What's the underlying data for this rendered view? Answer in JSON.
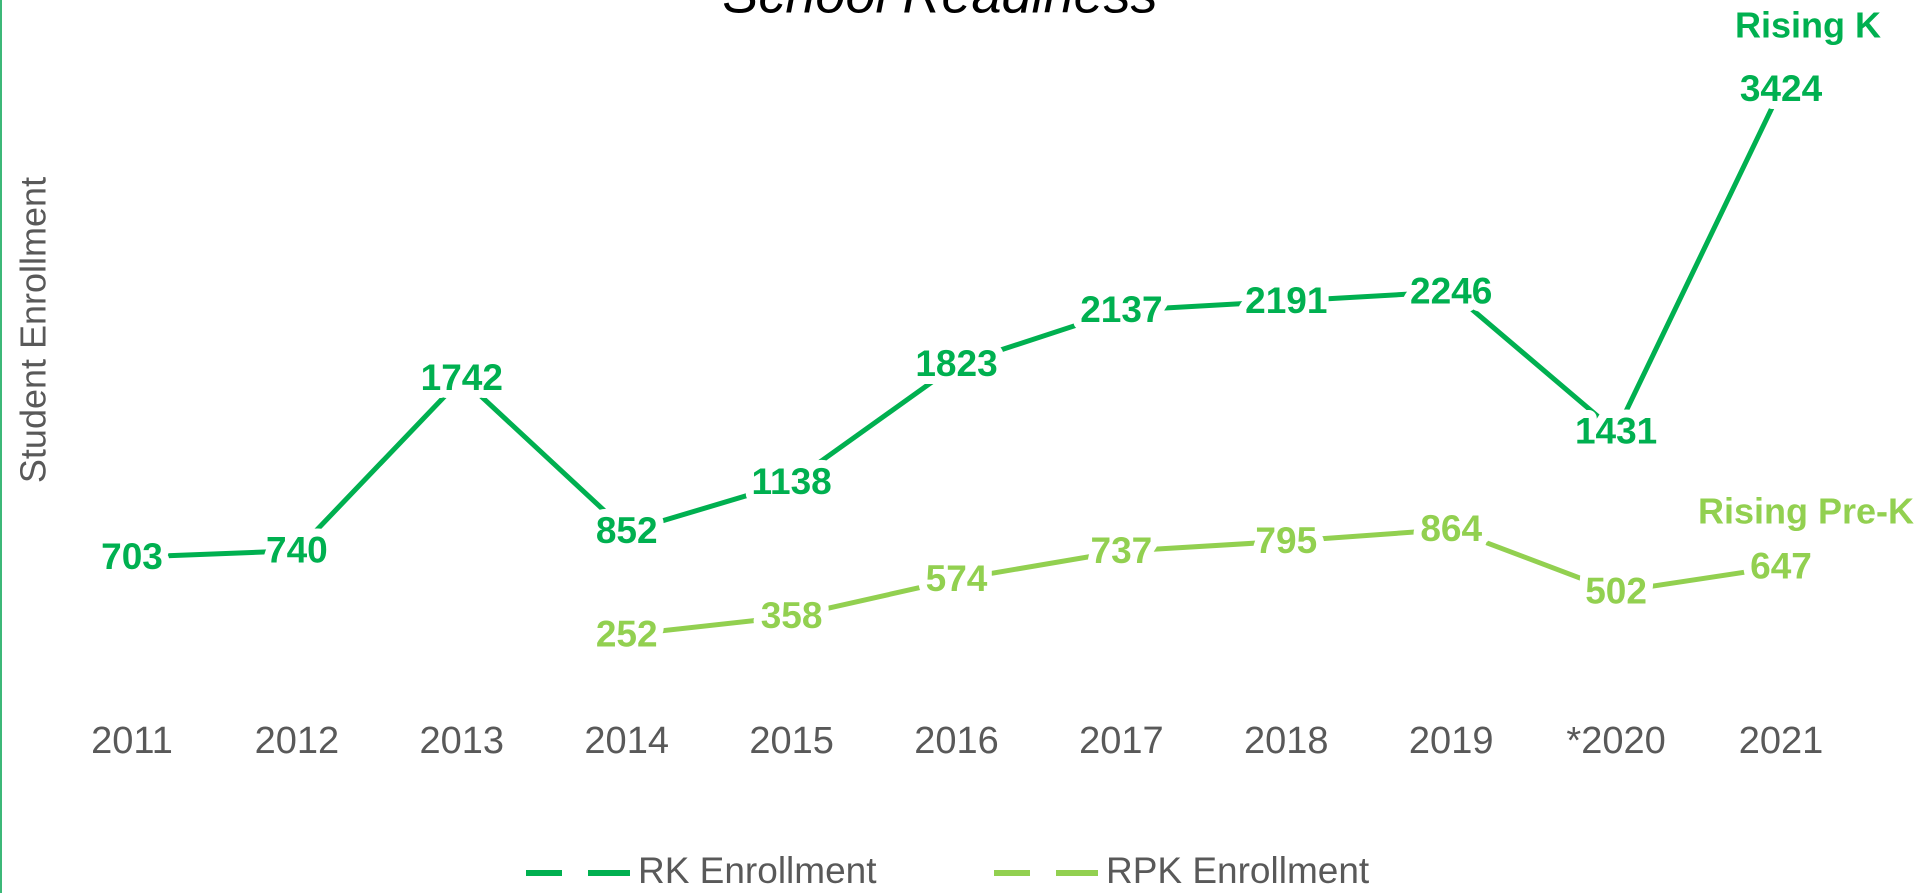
{
  "chart_data": {
    "type": "line",
    "title": "School Readiness",
    "y_label": "Student Enrollment",
    "categories": [
      "2011",
      "2012",
      "2013",
      "2014",
      "2015",
      "2016",
      "2017",
      "2018",
      "2019",
      "*2020",
      "2021"
    ],
    "series": [
      {
        "name": "RK Enrollment",
        "color": "#00b050",
        "values": [
          703,
          740,
          1742,
          852,
          1138,
          1823,
          2137,
          2191,
          2246,
          1431,
          3424
        ]
      },
      {
        "name": "RPK Enrollment",
        "color": "#92d050",
        "values": [
          null,
          null,
          null,
          252,
          358,
          574,
          737,
          795,
          864,
          502,
          647
        ]
      }
    ],
    "annotations": [
      "Rising K",
      "Rising Pre-K"
    ],
    "ylim": [
      0,
      4000
    ],
    "grid": false,
    "legend": "bottom"
  }
}
